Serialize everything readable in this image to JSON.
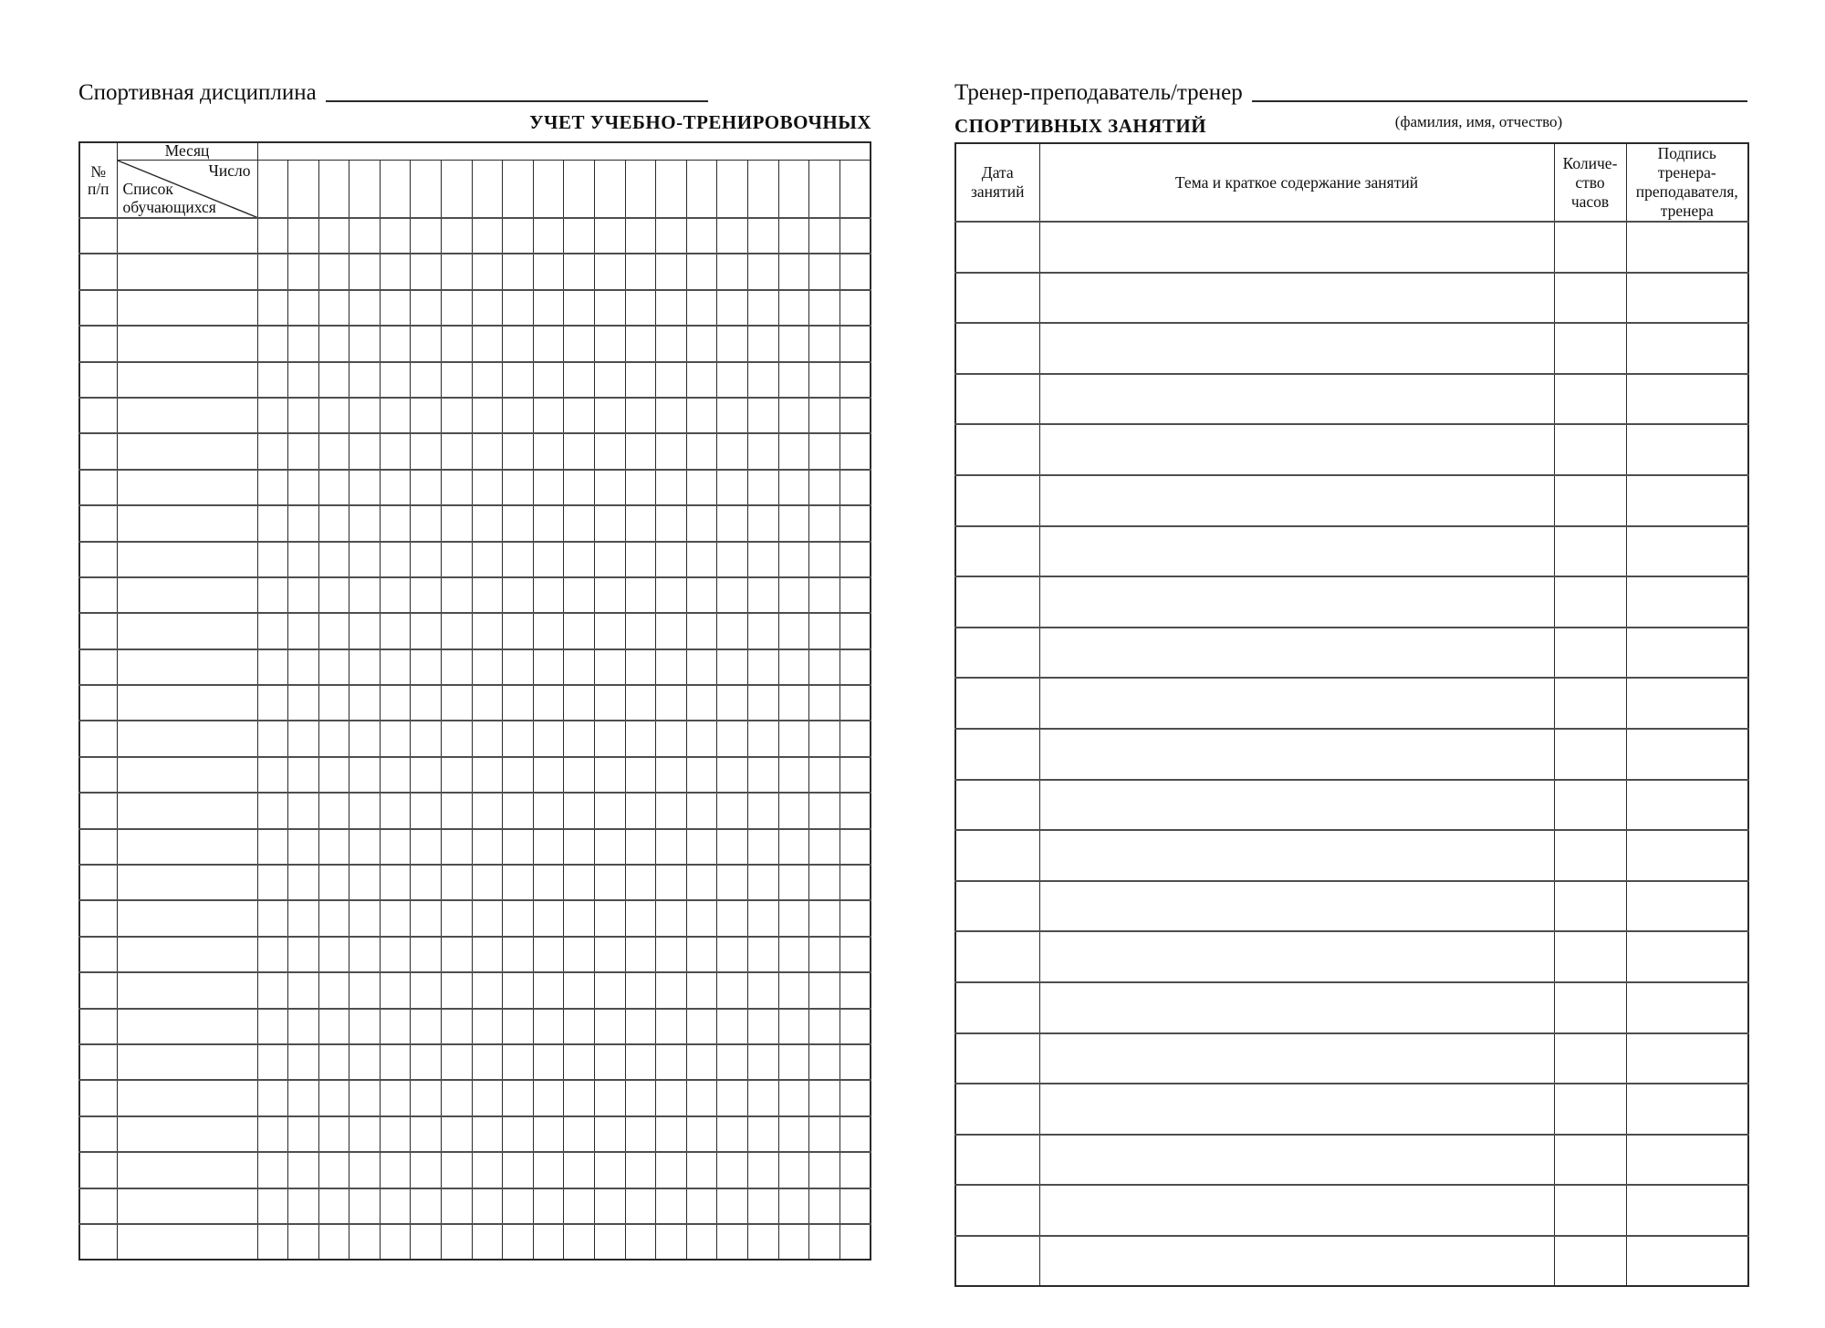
{
  "colors": {
    "paper": "#ffffff",
    "grid_line": "#2a2a2a",
    "grid_line_soft": "#4e4e4e",
    "text": "#101010"
  },
  "page_left": {
    "discipline_label": "Спортивная дисциплина",
    "discipline_value": "",
    "title": "УЧЕТ УЧЕБНО-ТРЕНИРОВОЧНЫХ",
    "table": {
      "row_number_header": [
        "№",
        "п/п"
      ],
      "month_label": "Месяц",
      "month_value": "",
      "day_label": "Число",
      "students_label": [
        "Список",
        "обучающихся"
      ],
      "date_columns": 20,
      "rows": 29
    }
  },
  "page_right": {
    "trainer_label": "Тренер-преподаватель/тренер",
    "trainer_value": "",
    "trainer_hint": "(фамилия, имя, отчество)",
    "title": "СПОРТИВНЫХ ЗАНЯТИЙ",
    "table": {
      "date_header": [
        "Дата",
        "занятий"
      ],
      "topic_header": "Тема и краткое содержание занятий",
      "hours_header": [
        "Количе-",
        "ство",
        "часов"
      ],
      "signature_header": [
        "Подпись",
        "тренера-",
        "преподавателя,",
        "тренера"
      ],
      "rows": 21
    }
  }
}
